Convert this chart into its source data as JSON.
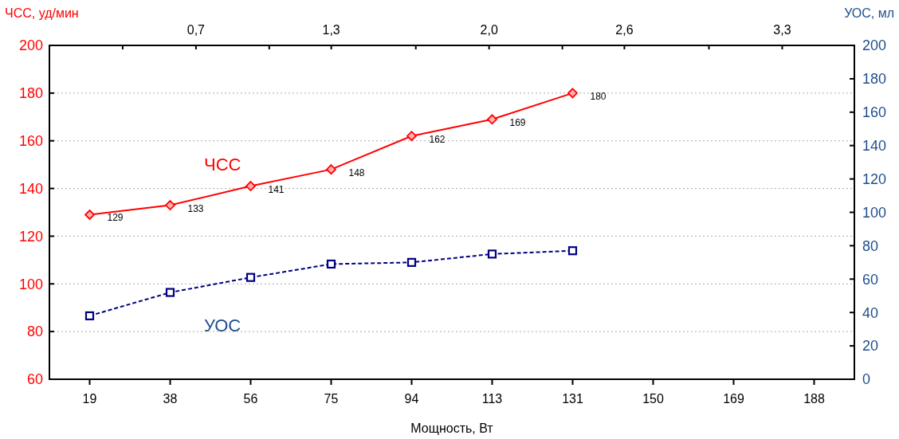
{
  "chart_data": {
    "type": "line",
    "xlabel": "Мощность, Вт",
    "ylabel": "ЧСС, уд/мин",
    "y2label": "УОС, мл",
    "categories": [
      "19",
      "38",
      "56",
      "75",
      "94",
      "113",
      "131",
      "150",
      "169",
      "188"
    ],
    "series": [
      {
        "name": "ЧСС",
        "color": "#ff0000",
        "marker": "diamond",
        "line_style": "solid",
        "values": [
          129,
          133,
          141,
          148,
          162,
          169,
          180,
          null,
          null,
          null
        ],
        "value_labels": [
          "129",
          "133",
          "141",
          "148",
          "162",
          "169",
          "180",
          null,
          null,
          null
        ]
      },
      {
        "name": "УОС",
        "color": "#000080",
        "marker": "square",
        "line_style": "dashed",
        "axis": "y2",
        "values": [
          38,
          52,
          61,
          69,
          70,
          75,
          77,
          null,
          null,
          null
        ]
      }
    ],
    "ylim": [
      60,
      200
    ],
    "yticks": [
      60,
      80,
      100,
      120,
      140,
      160,
      180,
      200
    ],
    "y2lim": [
      0,
      200
    ],
    "y2ticks": [
      0,
      20,
      40,
      60,
      80,
      100,
      120,
      140,
      160,
      180,
      200
    ],
    "x2lim": [
      0.05,
      3.62
    ],
    "x2ticks": [
      {
        "value": 0.375,
        "label": null
      },
      {
        "value": 0.7,
        "label": "0,7"
      },
      {
        "value": 1.025,
        "label": null
      },
      {
        "value": 1.3,
        "label": "1,3"
      },
      {
        "value": 1.675,
        "label": null
      },
      {
        "value": 2.0,
        "label": "2,0"
      },
      {
        "value": 2.325,
        "label": null
      },
      {
        "value": 2.6,
        "label": "2,6"
      },
      {
        "value": 2.975,
        "label": null
      },
      {
        "value": 3.3,
        "label": "3,3"
      }
    ],
    "grid": "y"
  }
}
